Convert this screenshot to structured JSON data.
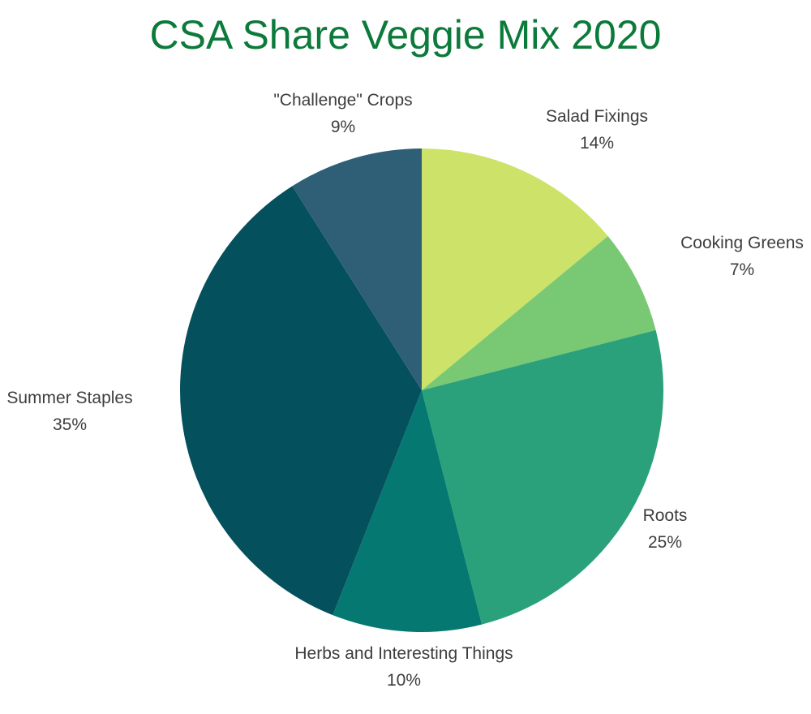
{
  "chart_data": {
    "type": "pie",
    "title": "CSA Share Veggie Mix 2020",
    "slices": [
      {
        "label": "Salad Fixings",
        "percent_text": "14%",
        "value": 14,
        "color": "#cde268"
      },
      {
        "label": "Cooking Greens",
        "percent_text": "7%",
        "value": 7,
        "color": "#79c874"
      },
      {
        "label": "Roots",
        "percent_text": "25%",
        "value": 25,
        "color": "#2ba17b"
      },
      {
        "label": "Herbs and Interesting Things",
        "percent_text": "10%",
        "value": 10,
        "color": "#057872"
      },
      {
        "label": "Summer Staples",
        "percent_text": "35%",
        "value": 35,
        "color": "#04505c"
      },
      {
        "label": "\"Challenge\" Crops",
        "percent_text": "9%",
        "value": 9,
        "color": "#2e5f76"
      }
    ],
    "start": "12 o'clock",
    "direction": "clockwise",
    "legend": "none",
    "title_color": "#0b7a3a"
  }
}
